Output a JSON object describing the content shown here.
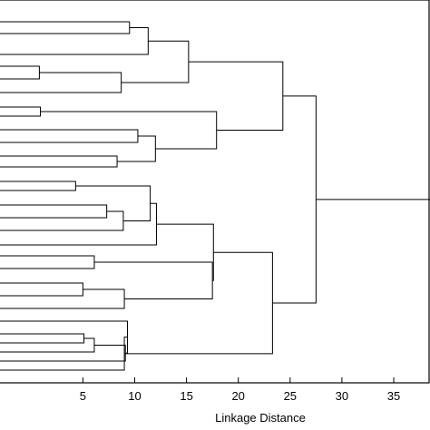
{
  "chart_data": {
    "type": "dendrogram",
    "orientation": "horizontal",
    "xlabel": "Linkage Distance",
    "xlim": [
      -3,
      38.5
    ],
    "xticks": [
      5,
      10,
      15,
      20,
      25,
      30,
      35
    ],
    "xtick_labels": [
      "5",
      "10",
      "15",
      "20",
      "25",
      "30",
      "35"
    ],
    "leaf_count": 29,
    "leaves": [
      {
        "y": 24
      },
      {
        "y": 37
      },
      {
        "y": 60
      },
      {
        "y": 73
      },
      {
        "y": 87
      },
      {
        "y": 102
      },
      {
        "y": 118
      },
      {
        "y": 128
      },
      {
        "y": 143
      },
      {
        "y": 157
      },
      {
        "y": 172
      },
      {
        "y": 184
      },
      {
        "y": 200
      },
      {
        "y": 210
      },
      {
        "y": 226
      },
      {
        "y": 240
      },
      {
        "y": 254
      },
      {
        "y": 270
      },
      {
        "y": 282
      },
      {
        "y": 296
      },
      {
        "y": 312
      },
      {
        "y": 326
      },
      {
        "y": 340
      },
      {
        "y": 354
      },
      {
        "y": 368
      },
      {
        "y": 378
      },
      {
        "y": 388
      },
      {
        "y": 398
      },
      {
        "y": 408
      }
    ],
    "merges": [
      {
        "a": "L0",
        "b": "L1",
        "height": 9.5
      },
      {
        "a": "N0",
        "b": "L2",
        "height": 11.3
      },
      {
        "a": "L3",
        "b": "L4",
        "height": 0.8
      },
      {
        "a": "N2",
        "b": "L5",
        "height": 8.7
      },
      {
        "a": "N1",
        "b": "N3",
        "height": 15.2
      },
      {
        "a": "L6",
        "b": "L7",
        "height": 0.9
      },
      {
        "a": "L8",
        "b": "L9",
        "height": 10.3
      },
      {
        "a": "L10",
        "b": "L11",
        "height": 8.3
      },
      {
        "a": "N6",
        "b": "N7",
        "height": 12.0
      },
      {
        "a": "N5",
        "b": "N8",
        "height": 17.9
      },
      {
        "a": "N4",
        "b": "N9",
        "height": 24.3
      },
      {
        "a": "L12",
        "b": "L13",
        "height": 4.3
      },
      {
        "a": "L14",
        "b": "L15",
        "height": 7.3
      },
      {
        "a": "N12",
        "b": "L16",
        "height": 8.9
      },
      {
        "a": "N11",
        "b": "N13",
        "height": 11.5
      },
      {
        "a": "N14",
        "b": "L17",
        "height": 12.1
      },
      {
        "a": "L18",
        "b": "L19",
        "height": 6.1
      },
      {
        "a": "L20",
        "b": "L21",
        "height": 5.0
      },
      {
        "a": "N17",
        "b": "L22",
        "height": 9.0
      },
      {
        "a": "N16",
        "b": "N18",
        "height": 17.5
      },
      {
        "a": "N15",
        "b": "N19",
        "height": 17.6
      },
      {
        "a": "L24",
        "b": "L25",
        "height": 5.1
      },
      {
        "a": "N21",
        "b": "L26",
        "height": 6.1
      },
      {
        "a": "N22",
        "b": "L27",
        "height": 9.1
      },
      {
        "a": "L23",
        "b": "N23",
        "height": 9.3
      },
      {
        "a": "N24",
        "b": "L28",
        "height": 9.0
      },
      {
        "a": "N20",
        "b": "N25",
        "height": 23.3
      },
      {
        "a": "N10",
        "b": "N26",
        "height": 27.5
      }
    ],
    "root_tail_to": 38.5,
    "grid": false,
    "legend": "none"
  }
}
